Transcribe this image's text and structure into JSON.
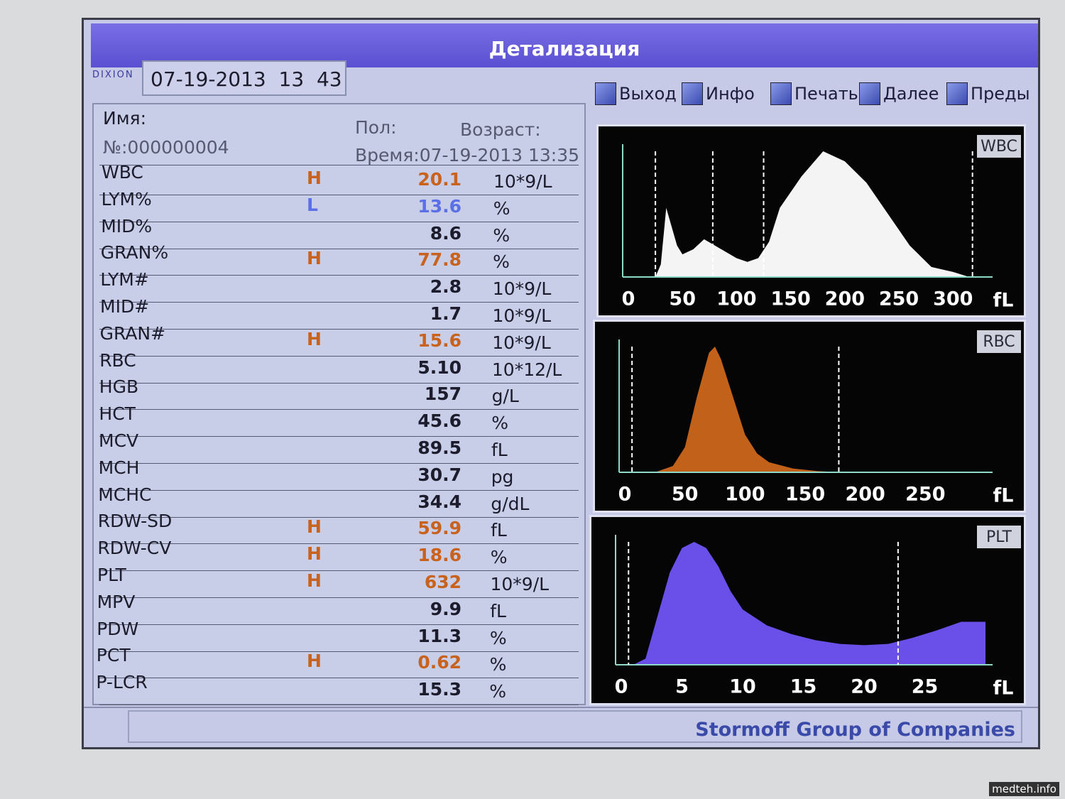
{
  "header": {
    "title": "Детализация",
    "logo": "DIXION",
    "datetime": "07-19-2013  13  43"
  },
  "toolbar": [
    "Выход",
    "Инфо",
    "Печать",
    "Далее",
    "Преды"
  ],
  "patient": {
    "name_label": "Имя:",
    "sex_label": "Пол:",
    "age_label": "Возраст:",
    "number": "№:000000004",
    "time": "Время:07-19-2013 13:35"
  },
  "table": {
    "rows": [
      {
        "name": "WBC",
        "flag": "H",
        "color": "#c8621c",
        "value": "20.1",
        "unit": "10*9/L"
      },
      {
        "name": "LYM%",
        "flag": "L",
        "color": "#5b6fe6",
        "value": "13.6",
        "unit": "%"
      },
      {
        "name": "MID%",
        "value": "8.6",
        "unit": "%"
      },
      {
        "name": "GRAN%",
        "flag": "H",
        "color": "#c8621c",
        "value": "77.8",
        "unit": "%"
      },
      {
        "name": "LYM#",
        "value": "2.8",
        "unit": "10*9/L"
      },
      {
        "name": "MID#",
        "value": "1.7",
        "unit": "10*9/L"
      },
      {
        "name": "GRAN#",
        "flag": "H",
        "color": "#c8621c",
        "value": "15.6",
        "unit": "10*9/L"
      },
      {
        "name": "RBC",
        "value": "5.10",
        "unit": "10*12/L"
      },
      {
        "name": "HGB",
        "value": "157",
        "unit": "g/L"
      },
      {
        "name": "HCT",
        "value": "45.6",
        "unit": "%"
      },
      {
        "name": "MCV",
        "value": "89.5",
        "unit": "fL"
      },
      {
        "name": "MCH",
        "value": "30.7",
        "unit": "pg"
      },
      {
        "name": "MCHC",
        "value": "34.4",
        "unit": "g/dL"
      },
      {
        "name": "RDW-SD",
        "flag": "H",
        "color": "#c8621c",
        "value": "59.9",
        "unit": "fL"
      },
      {
        "name": "RDW-CV",
        "flag": "H",
        "color": "#c8621c",
        "value": "18.6",
        "unit": "%"
      },
      {
        "name": "PLT",
        "flag": "H",
        "color": "#c8621c",
        "value": "632",
        "unit": "10*9/L"
      },
      {
        "name": "MPV",
        "value": "9.9",
        "unit": "fL"
      },
      {
        "name": "PDW",
        "value": "11.3",
        "unit": "%"
      },
      {
        "name": "PCT",
        "flag": "H",
        "color": "#c8621c",
        "value": "0.62",
        "unit": "%"
      },
      {
        "name": "P-LCR",
        "value": "15.3",
        "unit": "%"
      }
    ]
  },
  "histograms": [
    {
      "label": "WBC",
      "unit": "fL",
      "color": "#f4f4f4",
      "xlim": [
        0,
        330
      ],
      "ylim": [
        0,
        100
      ],
      "xticks": [
        0,
        50,
        100,
        150,
        200,
        250,
        300
      ],
      "markers": [
        25,
        78,
        125,
        318
      ],
      "x": [
        25,
        30,
        35,
        40,
        45,
        50,
        60,
        70,
        80,
        90,
        100,
        110,
        120,
        130,
        140,
        160,
        180,
        200,
        220,
        240,
        260,
        280,
        300,
        315
      ],
      "values": [
        0,
        10,
        55,
        40,
        25,
        18,
        22,
        30,
        25,
        20,
        15,
        12,
        15,
        28,
        55,
        80,
        100,
        92,
        75,
        50,
        25,
        8,
        4,
        0
      ]
    },
    {
      "label": "RBC",
      "unit": "fL",
      "color": "#c2621a",
      "xlim": [
        0,
        300
      ],
      "ylim": [
        0,
        100
      ],
      "xticks": [
        0,
        50,
        100,
        150,
        200,
        250
      ],
      "markers": [
        6,
        178
      ],
      "x": [
        25,
        40,
        50,
        60,
        70,
        75,
        80,
        90,
        100,
        110,
        120,
        140,
        160,
        180
      ],
      "values": [
        0,
        5,
        20,
        60,
        95,
        100,
        90,
        60,
        30,
        15,
        8,
        3,
        1,
        0
      ]
    },
    {
      "label": "PLT",
      "unit": "fL",
      "color": "#6a50e8",
      "xlim": [
        0,
        30
      ],
      "ylim": [
        0,
        100
      ],
      "xticks": [
        0,
        5,
        10,
        15,
        20,
        25
      ],
      "markers": [
        0.6,
        22.8
      ],
      "x": [
        1,
        2,
        3,
        4,
        5,
        6,
        7,
        8,
        9,
        10,
        12,
        14,
        16,
        18,
        20,
        22,
        24,
        26,
        28,
        30
      ],
      "values": [
        0,
        5,
        40,
        75,
        95,
        100,
        95,
        80,
        60,
        45,
        32,
        25,
        20,
        17,
        16,
        17,
        22,
        28,
        35,
        35
      ]
    }
  ],
  "footer": "Stormoff Group of Companies",
  "watermark": "medteh.info"
}
